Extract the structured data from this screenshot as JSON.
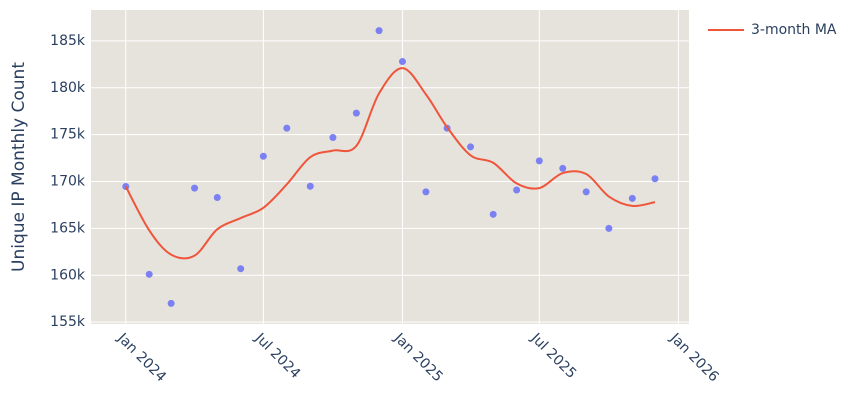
{
  "chart_data": {
    "type": "scatter",
    "y_axis_title": "Unique IP Monthly Count",
    "x": [
      "2024-01",
      "2024-02",
      "2024-03",
      "2024-04",
      "2024-05",
      "2024-06",
      "2024-07",
      "2024-08",
      "2024-09",
      "2024-10",
      "2024-11",
      "2024-12",
      "2025-01",
      "2025-02",
      "2025-03",
      "2025-04",
      "2025-05",
      "2025-06",
      "2025-07",
      "2025-08",
      "2025-09",
      "2025-10",
      "2025-11",
      "2025-12"
    ],
    "series": [
      {
        "mode": "markers",
        "color": "#7b80f2",
        "values": [
          169470,
          160100,
          157000,
          169300,
          168300,
          160700,
          172700,
          175700,
          169500,
          174700,
          177300,
          186100,
          182800,
          168900,
          175700,
          173700,
          166500,
          169100,
          172200,
          171400,
          168900,
          165000,
          168200,
          170300
        ]
      },
      {
        "name": "3-month MA",
        "mode": "lines",
        "color": "#ef553b",
        "values": [
          169470,
          164800,
          162200,
          162100,
          164900,
          166100,
          167200,
          169700,
          172600,
          173300,
          173800,
          179400,
          182100,
          179300,
          175800,
          172800,
          172000,
          169800,
          169300,
          170900,
          170800,
          168400,
          167400,
          167800
        ]
      }
    ],
    "xlim": [
      "2023-11-16",
      "2026-01-15"
    ],
    "xticks": [
      {
        "value": "2024-01-01",
        "label": "Jan 2024"
      },
      {
        "value": "2024-07-01",
        "label": "Jul 2024"
      },
      {
        "value": "2025-01-01",
        "label": "Jan 2025"
      },
      {
        "value": "2025-07-01",
        "label": "Jul 2025"
      },
      {
        "value": "2026-01-01",
        "label": "Jan 2026"
      }
    ],
    "ylim": [
      154800,
      188300
    ],
    "yticks": [
      {
        "value": 155000,
        "label": "155k"
      },
      {
        "value": 160000,
        "label": "160k"
      },
      {
        "value": 165000,
        "label": "165k"
      },
      {
        "value": 170000,
        "label": "170k"
      },
      {
        "value": 175000,
        "label": "175k"
      },
      {
        "value": 180000,
        "label": "180k"
      },
      {
        "value": 185000,
        "label": "185k"
      }
    ],
    "grid": true,
    "background": "#e6e3dc",
    "legend": "top-right"
  }
}
